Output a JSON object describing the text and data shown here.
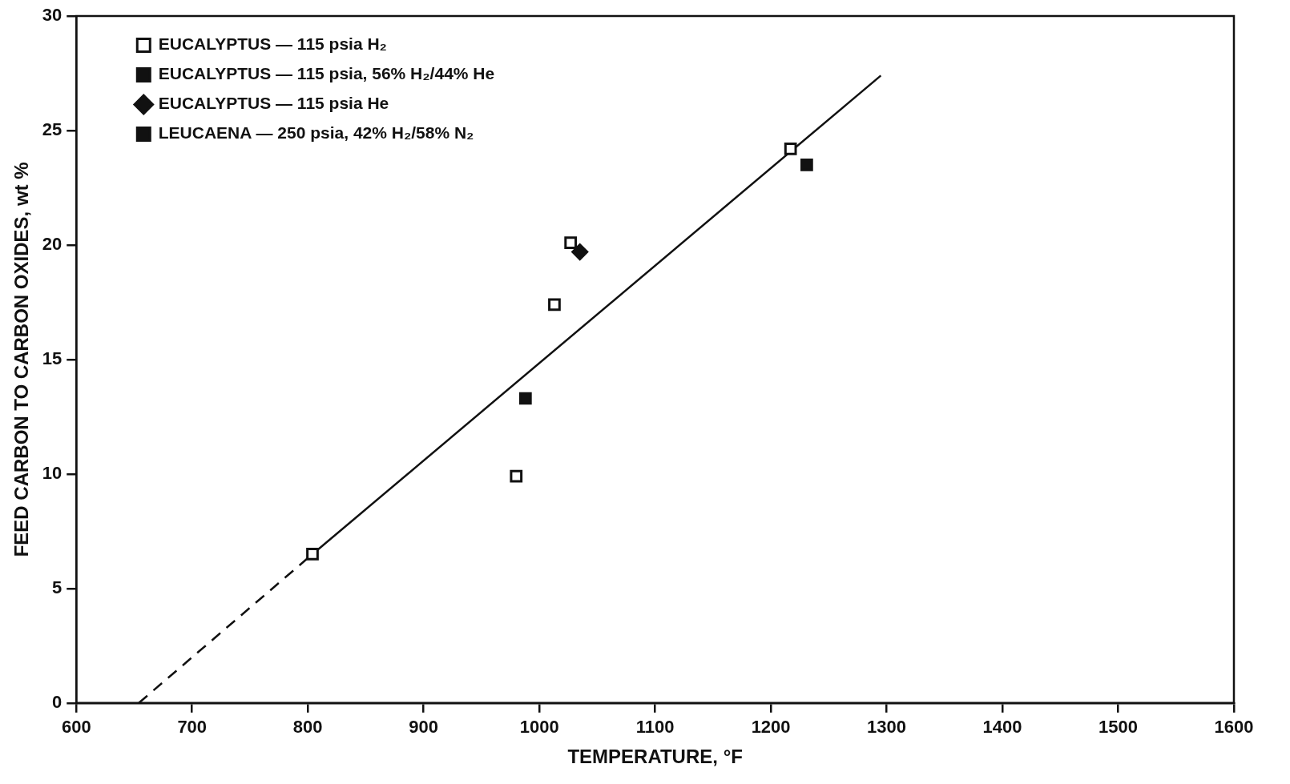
{
  "chart_data": {
    "type": "scatter",
    "xlabel": "TEMPERATURE, °F",
    "ylabel": "FEED CARBON TO CARBON OXIDES, wt %",
    "xlim": [
      600,
      1600
    ],
    "xticks": [
      600,
      700,
      800,
      900,
      1000,
      1100,
      1200,
      1300,
      1400,
      1500,
      1600
    ],
    "ylim": [
      0,
      30
    ],
    "yticks": [
      0,
      5,
      10,
      15,
      20,
      25,
      30
    ],
    "grid": false,
    "legend": "top left",
    "series": [
      {
        "name": "EUCALYPTUS — 115 psia H₂",
        "color": "#111111",
        "marker": "square",
        "x": [
          804,
          980,
          1013,
          1027,
          1217
        ],
        "values": [
          6.5,
          9.9,
          17.4,
          20.1,
          24.2
        ]
      },
      {
        "name": "EUCALYPTUS — 115 psia, 56% H₂/44% He",
        "color": "#111111",
        "marker": "square",
        "x": [
          988
        ],
        "values": [
          13.3
        ]
      },
      {
        "name": "EUCALYPTUS — 115 psia He",
        "color": "#111111",
        "marker": "diamond",
        "x": [
          1035
        ],
        "values": [
          19.7
        ]
      },
      {
        "name": "LEUCAENA — 250 psia, 42% H₂/58% N₂",
        "color": "#111111",
        "marker": "square",
        "x": [
          1231
        ],
        "values": [
          23.5
        ]
      },
      {
        "type": "line",
        "color": "#111111",
        "marker": "none",
        "line_style": "dashed",
        "x": [
          654,
          804
        ],
        "values": [
          0,
          6.5
        ]
      },
      {
        "type": "line",
        "color": "#111111",
        "marker": "none",
        "line_style": "solid",
        "x": [
          804,
          1295
        ],
        "values": [
          6.5,
          27.4
        ]
      }
    ]
  }
}
